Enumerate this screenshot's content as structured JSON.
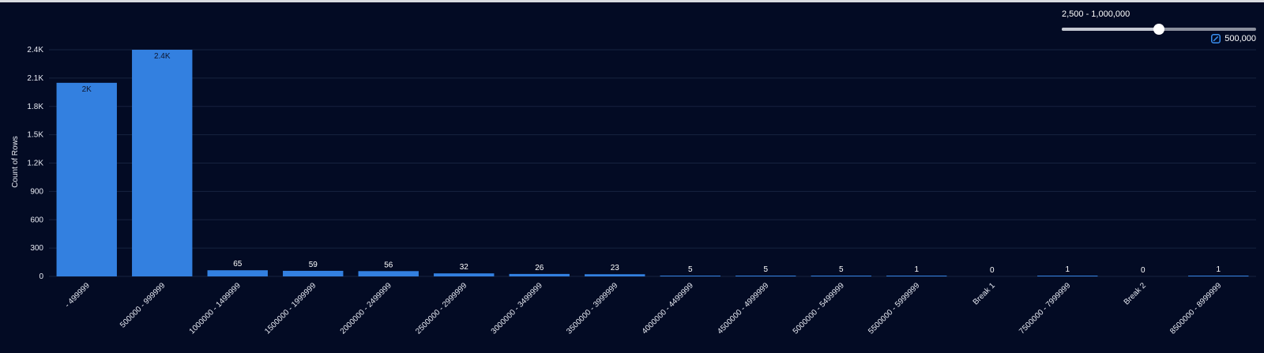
{
  "slider": {
    "range_label": "2,500 - 1,000,000",
    "value_label": "500,000",
    "min": 2500,
    "max": 1000000,
    "value": 500000,
    "edit_icon": "edit-pencil-icon"
  },
  "chart_data": {
    "type": "bar",
    "ylabel": "Count of Rows",
    "xlabel": "",
    "ylim": [
      0,
      2400
    ],
    "yticks": [
      0,
      300,
      600,
      900,
      1200,
      1500,
      1800,
      2100,
      2400
    ],
    "ytick_labels": [
      "0",
      "300",
      "600",
      "900",
      "1.2K",
      "1.5K",
      "1.8K",
      "2.1K",
      "2.4K"
    ],
    "grid": true,
    "categories": [
      "- 499999",
      "500000 - 999999",
      "1000000 - 1499999",
      "1500000 - 1999999",
      "2000000 - 2499999",
      "2500000 - 2999999",
      "3000000 - 3499999",
      "3500000 - 3999999",
      "4000000 - 4499999",
      "4500000 - 4999999",
      "5000000 - 5499999",
      "5500000 - 5999999",
      "Break 1",
      "7500000 - 7999999",
      "Break 2",
      "8500000 - 8999999"
    ],
    "values": [
      2050,
      2400,
      65,
      59,
      56,
      32,
      26,
      23,
      5,
      5,
      5,
      1,
      0,
      1,
      0,
      1
    ],
    "value_labels": [
      "2K",
      "2.4K",
      "65",
      "59",
      "56",
      "32",
      "26",
      "23",
      "5",
      "5",
      "5",
      "1",
      "0",
      "1",
      "0",
      "1"
    ],
    "colors": {
      "bar": "#3380e0",
      "grid": "#17233f",
      "background": "#030b24"
    }
  }
}
